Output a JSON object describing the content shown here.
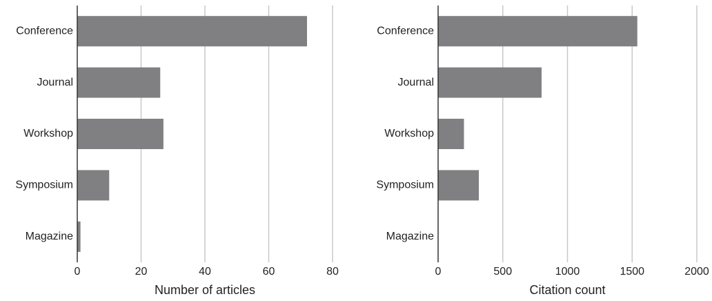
{
  "chart_data": [
    {
      "type": "bar",
      "orientation": "horizontal",
      "xlabel": "Number of articles",
      "categories": [
        "Conference",
        "Journal",
        "Workshop",
        "Symposium",
        "Magazine"
      ],
      "values": [
        72,
        26,
        27,
        10,
        1
      ],
      "color": "#808082",
      "xlim": [
        0,
        80
      ],
      "xticks": [
        0,
        20,
        40,
        60,
        80
      ],
      "grid": true
    },
    {
      "type": "bar",
      "orientation": "horizontal",
      "xlabel": "Citation count",
      "categories": [
        "Conference",
        "Journal",
        "Workshop",
        "Symposium",
        "Magazine"
      ],
      "values": [
        1540,
        800,
        200,
        315,
        0
      ],
      "color": "#808082",
      "xlim": [
        0,
        2000
      ],
      "xticks": [
        0,
        500,
        1000,
        1500,
        2000
      ],
      "grid": true
    }
  ]
}
